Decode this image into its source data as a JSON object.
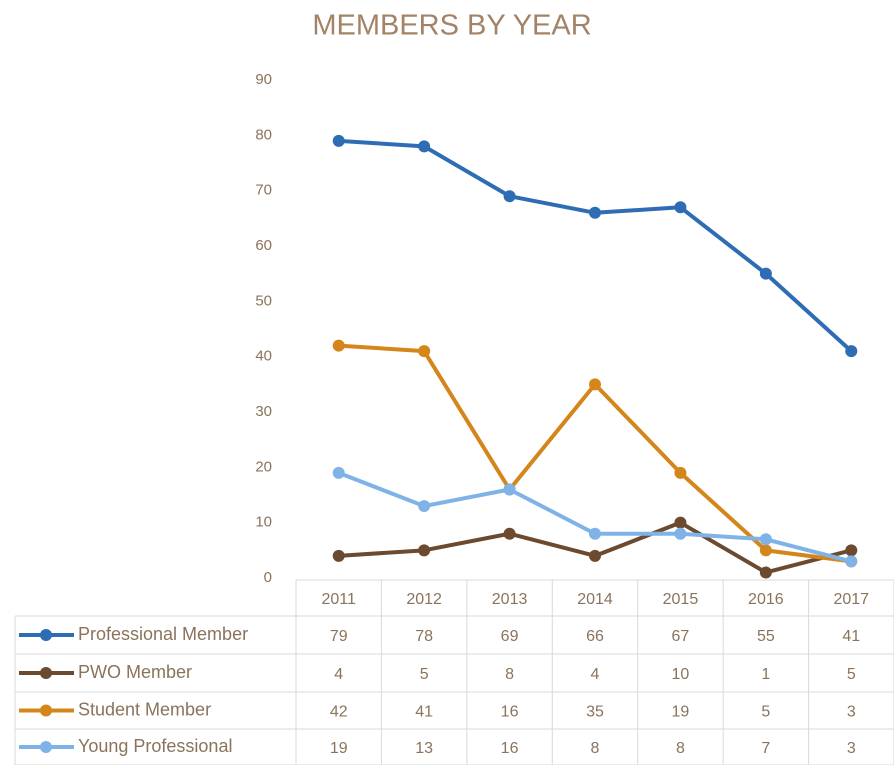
{
  "chart_data": {
    "type": "line",
    "title": "MEMBERS BY YEAR",
    "categories": [
      "2011",
      "2012",
      "2013",
      "2014",
      "2015",
      "2016",
      "2017"
    ],
    "series": [
      {
        "name": "Professional Member",
        "color": "#2e6db4",
        "values": [
          79,
          78,
          69,
          66,
          67,
          55,
          41
        ]
      },
      {
        "name": "PWO Member",
        "color": "#6b4a2f",
        "values": [
          4,
          5,
          8,
          4,
          10,
          1,
          5
        ]
      },
      {
        "name": "Student Member",
        "color": "#d4861a",
        "values": [
          42,
          41,
          16,
          35,
          19,
          5,
          3
        ]
      },
      {
        "name": "Young Professional",
        "color": "#7fb3e8",
        "values": [
          19,
          13,
          16,
          8,
          8,
          7,
          3
        ]
      }
    ],
    "ylim": [
      0,
      90
    ],
    "yticks": [
      0,
      10,
      20,
      30,
      40,
      50,
      60,
      70,
      80,
      90
    ]
  }
}
